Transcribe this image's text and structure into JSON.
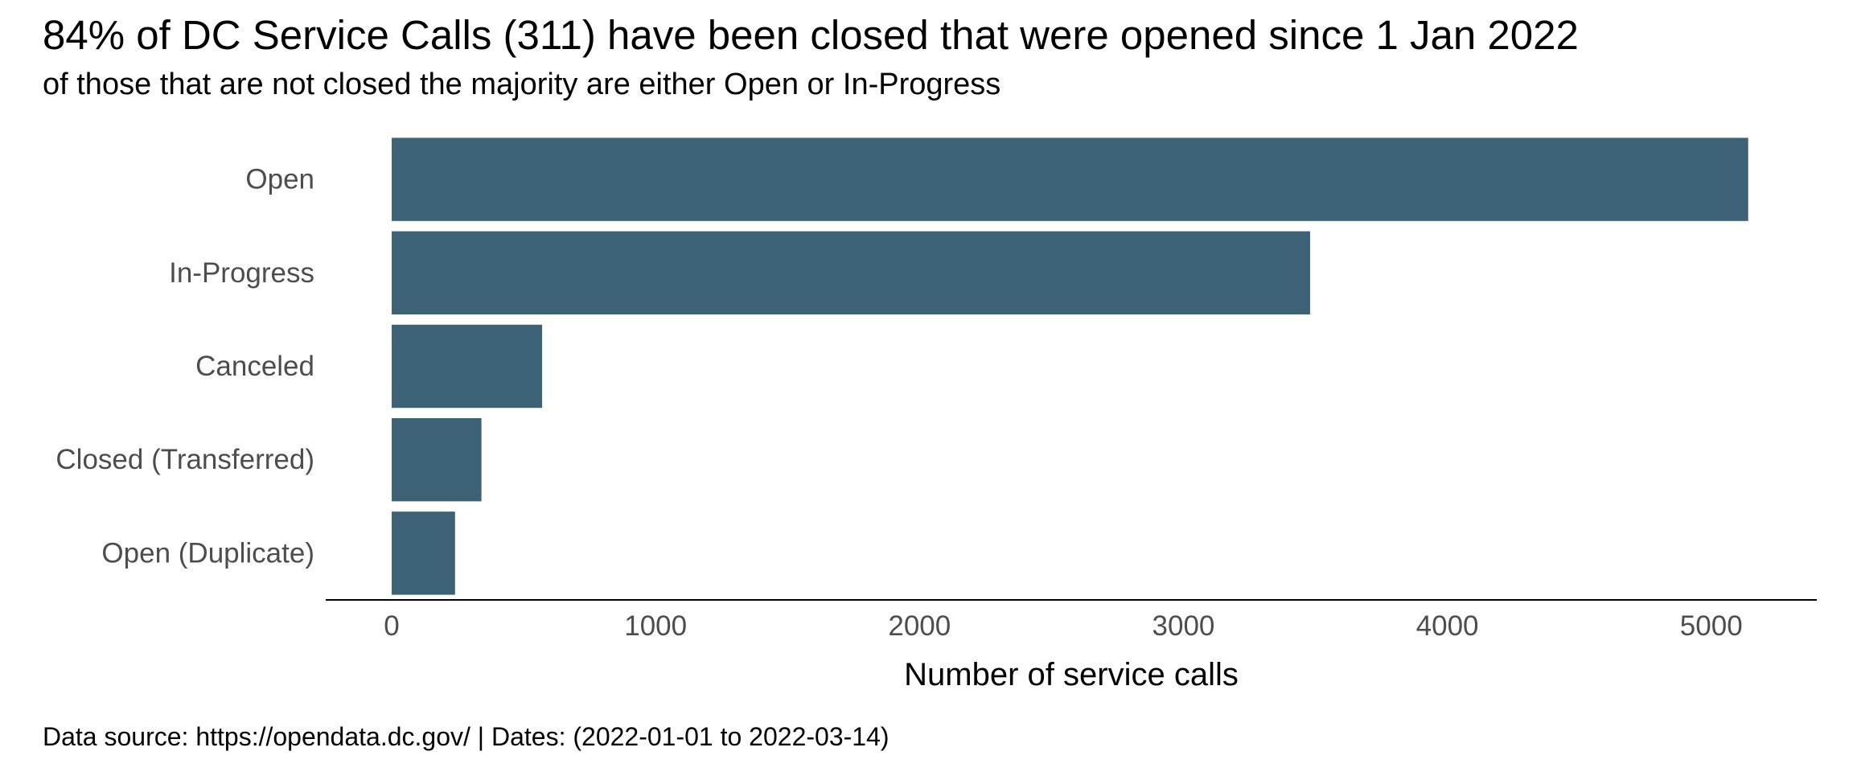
{
  "chart_data": {
    "type": "bar",
    "orientation": "horizontal",
    "title": "84% of DC Service Calls (311) have been closed that were opened since 1 Jan 2022",
    "subtitle": "of those that are not closed the majority are either Open or In-Progress",
    "caption": "Data source: https://opendata.dc.gov/ | Dates: (2022-01-01 to 2022-03-14)",
    "xlabel": "Number of service calls",
    "ylabel": "",
    "categories": [
      "Open",
      "In-Progress",
      "Canceled",
      "Closed (Transferred)",
      "Open (Duplicate)"
    ],
    "values": [
      5140,
      3480,
      570,
      340,
      240
    ],
    "xlim": [
      -250,
      5400
    ],
    "xticks": [
      0,
      1000,
      2000,
      3000,
      4000,
      5000
    ],
    "xtick_labels": [
      "0",
      "1000",
      "2000",
      "3000",
      "4000",
      "5000"
    ],
    "bar_color": "#3d6175",
    "grid": false,
    "legend": "none"
  }
}
